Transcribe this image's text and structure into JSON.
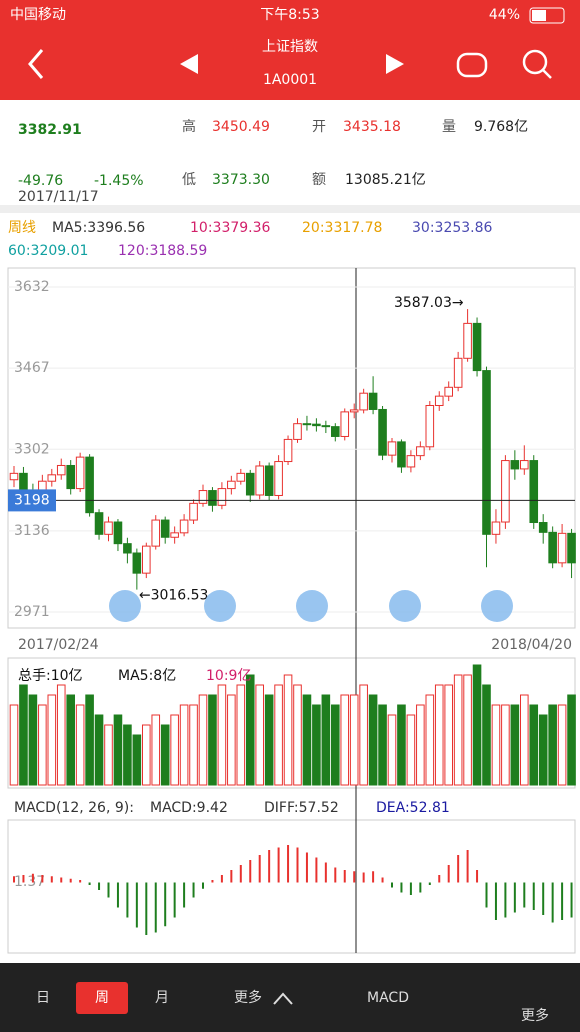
{
  "status": {
    "carrier": "中国移动",
    "time": "下午8:53",
    "battery": "44%"
  },
  "header": {
    "title": "上证指数",
    "code": "1A0001"
  },
  "quote": {
    "price": "3382.91",
    "high_label": "高",
    "high": "3450.49",
    "open_label": "开",
    "open": "3435.18",
    "volume_label": "量",
    "volume": "9.768亿",
    "change": "-49.76",
    "change_pct": "-1.45%",
    "date": "2017/11/17",
    "low_label": "低",
    "low": "3373.30",
    "amount_label": "额",
    "amount": "13085.21亿"
  },
  "ma_legend": {
    "period": "周线",
    "ma5": "MA5:3396.56",
    "ma10": "10:3379.36",
    "ma20": "20:3317.78",
    "ma30": "30:3253.86",
    "ma60": "60:3209.01",
    "ma120": "120:3188.59"
  },
  "chart_data": {
    "type": "candlestick",
    "open": [
      3240,
      3253,
      3218,
      3212,
      3237,
      3250,
      3269,
      3222,
      3286,
      3173,
      3129,
      3154,
      3110,
      3091,
      3050,
      3105,
      3158,
      3123,
      3132,
      3158,
      3192,
      3218,
      3188,
      3222,
      3237,
      3253,
      3209,
      3268,
      3208,
      3277,
      3322,
      3354,
      3353,
      3350,
      3348,
      3328,
      3378,
      3382,
      3416,
      3382.91,
      3290,
      3317,
      3266,
      3289,
      3307,
      3391,
      3410,
      3428,
      3487,
      3558,
      3462,
      3129,
      3154,
      3279,
      3262,
      3279,
      3153,
      3133,
      3071,
      3131
    ],
    "high": [
      3268,
      3266,
      3232,
      3250,
      3262,
      3283,
      3280,
      3295,
      3292,
      3180,
      3165,
      3160,
      3122,
      3100,
      3112,
      3168,
      3165,
      3145,
      3170,
      3200,
      3230,
      3225,
      3235,
      3248,
      3262,
      3260,
      3278,
      3275,
      3290,
      3330,
      3365,
      3370,
      3365,
      3360,
      3355,
      3385,
      3395,
      3425,
      3450.49,
      3390,
      3325,
      3322,
      3300,
      3318,
      3400,
      3420,
      3440,
      3500,
      3587.03,
      3570,
      3470,
      3180,
      3290,
      3300,
      3310,
      3290,
      3170,
      3145,
      3150,
      3140
    ],
    "low": [
      3225,
      3205,
      3198,
      3200,
      3226,
      3240,
      3210,
      3215,
      3165,
      3118,
      3115,
      3095,
      3070,
      3016.53,
      3040,
      3098,
      3110,
      3110,
      3125,
      3150,
      3185,
      3175,
      3180,
      3210,
      3230,
      3195,
      3200,
      3198,
      3200,
      3270,
      3315,
      3340,
      3338,
      3335,
      3318,
      3320,
      3365,
      3375,
      3373.3,
      3280,
      3275,
      3254,
      3255,
      3280,
      3300,
      3380,
      3400,
      3420,
      3480,
      3450,
      3062,
      3110,
      3140,
      3240,
      3250,
      3140,
      3110,
      3060,
      3062,
      3040
    ],
    "close": [
      3253,
      3218,
      3212,
      3237,
      3250,
      3269,
      3222,
      3286,
      3173,
      3129,
      3154,
      3110,
      3091,
      3050,
      3105,
      3158,
      3123,
      3132,
      3158,
      3192,
      3218,
      3188,
      3222,
      3237,
      3253,
      3209,
      3268,
      3208,
      3277,
      3322,
      3354,
      3353,
      3350,
      3348,
      3328,
      3378,
      3382,
      3416,
      3382.91,
      3290,
      3317,
      3266,
      3289,
      3307,
      3391,
      3410,
      3428,
      3487,
      3558,
      3462,
      3129,
      3154,
      3279,
      3262,
      3279,
      3153,
      3133,
      3071,
      3131,
      3071
    ],
    "ylim": [
      2971,
      3632
    ],
    "yticks": [
      3632,
      3467,
      3302,
      3136,
      2971
    ],
    "crosshair": 3198,
    "max_label": "3587.03→",
    "min_label": "←3016.53",
    "start_date": "2017/02/24",
    "end_date": "2018/04/20",
    "up_color": "#e8312e",
    "down_color": "#1e7e1e",
    "volume": {
      "type": "bar",
      "labels": {
        "total": "总手:10亿",
        "ma5": "MA5:8亿",
        "ma10": "10:9亿"
      },
      "values": [
        8,
        10,
        9,
        8,
        9,
        10,
        9,
        8,
        9,
        7,
        6,
        7,
        6,
        5,
        6,
        7,
        6,
        7,
        8,
        8,
        9,
        9,
        10,
        9,
        10,
        11,
        10,
        9,
        10,
        11,
        10,
        9,
        8,
        9,
        8,
        9,
        9,
        10,
        9,
        8,
        7,
        8,
        7,
        8,
        9,
        10,
        10,
        11,
        11,
        12,
        10,
        8,
        8,
        8,
        9,
        8,
        7,
        8,
        8,
        9
      ],
      "ylim": [
        0,
        12
      ]
    },
    "macd": {
      "type": "bar",
      "title": "MACD(12, 26, 9):",
      "macd": "MACD:9.42",
      "diff": "DIFF:57.52",
      "dea": "DEA:52.81",
      "tick_label": "1.37",
      "values": [
        5,
        6,
        7,
        6,
        5,
        4,
        3,
        2,
        -2,
        -6,
        -12,
        -20,
        -28,
        -36,
        -42,
        -40,
        -35,
        -28,
        -20,
        -12,
        -5,
        2,
        6,
        10,
        14,
        18,
        22,
        26,
        28,
        30,
        28,
        24,
        20,
        16,
        12,
        10,
        9,
        8,
        9,
        4,
        -4,
        -8,
        -10,
        -8,
        -2,
        6,
        14,
        22,
        26,
        10,
        -20,
        -30,
        -28,
        -24,
        -20,
        -22,
        -26,
        -32,
        -30,
        -28
      ],
      "ylim": [
        -50,
        50
      ]
    }
  },
  "tabs": {
    "day": "日",
    "week": "周",
    "month": "月",
    "more": "更多",
    "indicator": "MACD",
    "corner": "更多"
  }
}
